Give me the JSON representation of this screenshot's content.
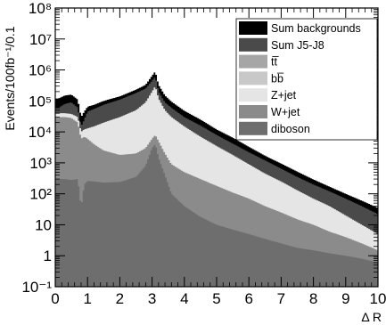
{
  "chart_data": {
    "type": "area",
    "title": "",
    "xlabel": "Δ R",
    "ylabel": "Events/100fb⁻¹/0.1",
    "xlim": [
      0,
      10
    ],
    "ylim": [
      0.1,
      100000000
    ],
    "yscale": "log",
    "stacked": true,
    "grid": false,
    "legend_position": "top-right",
    "x_ticks": [
      "0",
      "1",
      "2",
      "3",
      "4",
      "5",
      "6",
      "7",
      "8",
      "9",
      "10"
    ],
    "y_ticks": [
      "10⁻¹",
      "1",
      "10",
      "10²",
      "10³",
      "10⁴",
      "10⁵",
      "10⁶",
      "10⁷",
      "10⁸"
    ],
    "x": [
      0.1,
      0.3,
      0.5,
      0.7,
      0.8,
      0.9,
      1.0,
      1.2,
      1.5,
      2.0,
      2.5,
      2.8,
      3.0,
      3.1,
      3.2,
      3.4,
      3.6,
      4.0,
      4.5,
      5.0,
      5.5,
      6.0,
      6.5,
      7.0,
      7.5,
      8.0,
      8.5,
      9.0,
      9.5,
      10.0
    ],
    "series": [
      {
        "name": "diboson",
        "color": "#6e6e6e",
        "values": [
          300,
          300,
          280,
          300,
          35,
          200,
          260,
          250,
          230,
          240,
          350,
          800,
          3000,
          4000,
          1500,
          400,
          100,
          40,
          18,
          10,
          7,
          5,
          3.5,
          2.5,
          1.8,
          1.5,
          1.2,
          1.0,
          0.8,
          0.6
        ]
      },
      {
        "name": "W+jet",
        "color": "#8b8b8b",
        "values": [
          30000,
          30000,
          28000,
          20000,
          6000,
          7000,
          6000,
          4000,
          2500,
          1800,
          2000,
          3000,
          6000,
          8000,
          5000,
          2000,
          900,
          500,
          300,
          180,
          110,
          70,
          40,
          25,
          15,
          10,
          6,
          4,
          2.5,
          1.5
        ]
      },
      {
        "name": "Z+jet",
        "color": "#e5e5e5",
        "values": [
          40000,
          40000,
          38000,
          30000,
          10000,
          12000,
          13000,
          15000,
          20000,
          30000,
          50000,
          90000,
          200000,
          300000,
          120000,
          50000,
          30000,
          15000,
          7000,
          3500,
          1800,
          900,
          450,
          250,
          130,
          70,
          40,
          20,
          10,
          5
        ]
      },
      {
        "name": "bb̅",
        "color": "#c8c8c8",
        "values": [
          100,
          100,
          100,
          100,
          100,
          100,
          100,
          100,
          100,
          100,
          100,
          100,
          100,
          100,
          100,
          100,
          100,
          100,
          100,
          100,
          100,
          50,
          25,
          12,
          6,
          3,
          1.5,
          0.8,
          0.4,
          0.2
        ]
      },
      {
        "name": "tt̅",
        "color": "#a6a6a6",
        "values": [
          200,
          200,
          200,
          200,
          200,
          200,
          200,
          200,
          200,
          200,
          200,
          200,
          200,
          200,
          200,
          200,
          200,
          200,
          200,
          200,
          150,
          80,
          40,
          20,
          10,
          5,
          3,
          1.5,
          0.8,
          0.4
        ]
      },
      {
        "name": "Sum J5-J8",
        "color": "#4a4a4a",
        "values": [
          60000,
          80000,
          90000,
          60000,
          15000,
          25000,
          45000,
          55000,
          75000,
          110000,
          180000,
          250000,
          450000,
          600000,
          200000,
          90000,
          60000,
          30000,
          16000,
          8000,
          4200,
          2200,
          1200,
          650,
          350,
          200,
          120,
          70,
          40,
          22
        ]
      },
      {
        "name": "Sum backgrounds",
        "color": "#000000",
        "values": [
          120000,
          150000,
          160000,
          110000,
          30000,
          45000,
          65000,
          75000,
          100000,
          140000,
          230000,
          330000,
          650000,
          900000,
          330000,
          150000,
          95000,
          48000,
          25000,
          12000,
          6500,
          3300,
          1700,
          950,
          520,
          290,
          170,
          100,
          60,
          35
        ]
      }
    ]
  }
}
